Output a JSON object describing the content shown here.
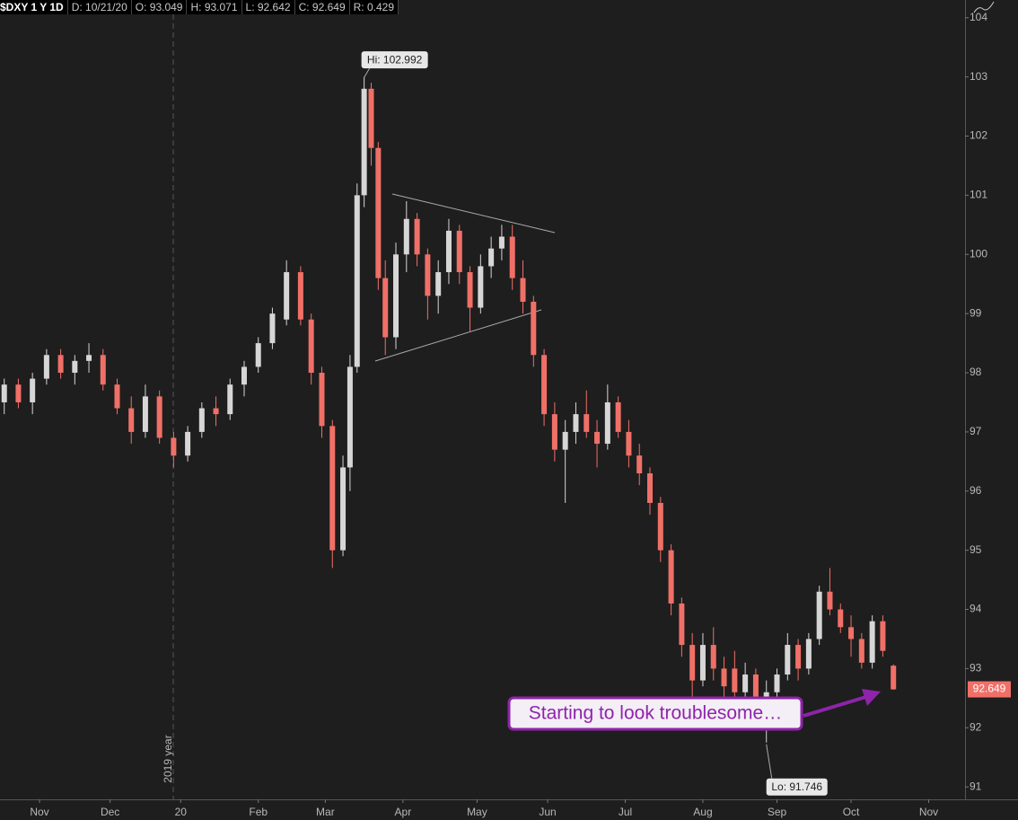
{
  "header": [
    "$DXY 1 Y 1D",
    "D: 10/21/20",
    "O: 93.049",
    "H: 93.071",
    "L: 92.642",
    "C: 92.649",
    "R: 0.429"
  ],
  "chart_data": {
    "type": "candlestick",
    "x": [
      -10,
      -6,
      -2,
      2,
      6,
      10,
      14,
      18,
      22,
      26,
      30,
      34,
      38,
      42,
      46,
      50,
      54,
      58,
      62,
      66,
      70,
      74,
      77,
      80,
      83,
      86,
      88,
      90,
      92,
      94,
      96,
      98,
      101,
      104,
      107,
      110,
      113,
      116,
      119,
      122,
      125,
      128,
      131,
      134,
      137,
      140,
      143,
      146,
      149,
      152,
      155,
      158,
      161,
      164,
      167,
      170,
      173,
      176,
      179,
      182,
      185,
      188,
      191,
      194,
      197,
      200,
      203,
      206,
      209,
      212,
      215,
      218,
      221,
      224,
      227,
      230,
      233,
      236,
      239,
      242
    ],
    "open": [
      97.5,
      97.8,
      97.5,
      97.9,
      98.3,
      98.0,
      98.2,
      98.3,
      97.8,
      97.4,
      97.0,
      97.6,
      96.9,
      96.6,
      97.0,
      97.4,
      97.3,
      97.8,
      98.1,
      98.5,
      98.9,
      99.7,
      98.9,
      98.0,
      97.1,
      95.0,
      96.4,
      98.1,
      101.0,
      102.8,
      101.8,
      99.6,
      98.6,
      100.0,
      100.6,
      100.0,
      99.3,
      99.7,
      100.4,
      99.7,
      99.1,
      99.8,
      100.1,
      100.3,
      99.6,
      99.2,
      98.3,
      97.3,
      96.7,
      97.0,
      97.3,
      97.0,
      96.8,
      97.5,
      97.0,
      96.6,
      96.3,
      95.8,
      95.0,
      94.1,
      93.4,
      92.8,
      93.4,
      93.0,
      93.0,
      92.6,
      92.9,
      92.4,
      92.6,
      92.9,
      93.4,
      93.0,
      93.5,
      94.3,
      94.0,
      93.7,
      93.5,
      93.1,
      93.8,
      93.049
    ],
    "high": [
      97.9,
      97.9,
      98.0,
      98.4,
      98.4,
      98.3,
      98.5,
      98.4,
      97.9,
      97.6,
      97.8,
      97.7,
      97.0,
      97.1,
      97.5,
      97.6,
      97.9,
      98.2,
      98.6,
      99.1,
      99.9,
      99.8,
      99.0,
      98.1,
      97.2,
      96.6,
      98.3,
      101.2,
      103.0,
      102.9,
      101.9,
      99.9,
      100.2,
      100.9,
      100.7,
      100.1,
      99.9,
      100.6,
      100.5,
      99.8,
      100.0,
      100.3,
      100.5,
      100.5,
      99.9,
      99.3,
      98.4,
      97.5,
      97.2,
      97.5,
      97.7,
      97.2,
      97.8,
      97.6,
      97.2,
      96.8,
      96.4,
      95.9,
      95.1,
      94.2,
      93.6,
      93.6,
      93.7,
      93.2,
      93.3,
      93.1,
      93.0,
      92.8,
      93.0,
      93.6,
      93.5,
      93.6,
      94.4,
      94.7,
      94.1,
      93.9,
      93.6,
      93.9,
      93.9,
      93.071
    ],
    "low": [
      97.3,
      97.4,
      97.3,
      97.8,
      97.9,
      97.8,
      98.0,
      97.7,
      97.3,
      96.8,
      96.9,
      96.8,
      96.4,
      96.5,
      96.9,
      97.1,
      97.2,
      97.6,
      98.0,
      98.4,
      98.8,
      98.8,
      97.8,
      96.9,
      94.7,
      94.9,
      96.0,
      98.0,
      100.8,
      101.5,
      99.4,
      98.3,
      98.4,
      99.7,
      99.8,
      98.9,
      99.0,
      99.5,
      99.5,
      98.7,
      99.0,
      99.6,
      99.9,
      99.4,
      99.0,
      98.1,
      97.1,
      96.5,
      95.8,
      96.8,
      96.9,
      96.4,
      96.7,
      96.9,
      96.4,
      96.1,
      95.6,
      94.8,
      93.9,
      93.2,
      92.5,
      92.7,
      92.8,
      92.4,
      92.5,
      92.4,
      92.2,
      91.75,
      92.5,
      92.8,
      92.8,
      92.9,
      93.4,
      93.9,
      93.6,
      93.2,
      93.0,
      93.0,
      93.2,
      92.642
    ],
    "close": [
      97.8,
      97.5,
      97.9,
      98.3,
      98.0,
      98.2,
      98.3,
      97.8,
      97.4,
      97.0,
      97.6,
      96.9,
      96.6,
      97.0,
      97.4,
      97.3,
      97.8,
      98.1,
      98.5,
      99.0,
      99.7,
      98.9,
      98.0,
      97.1,
      95.0,
      96.4,
      98.1,
      101.0,
      102.8,
      101.8,
      99.6,
      98.6,
      100.0,
      100.6,
      100.0,
      99.3,
      99.7,
      100.4,
      99.7,
      99.1,
      99.8,
      100.1,
      100.3,
      99.6,
      99.2,
      98.3,
      97.3,
      96.7,
      97.0,
      97.3,
      97.0,
      96.8,
      97.5,
      97.0,
      96.6,
      96.3,
      95.8,
      95.0,
      94.1,
      93.4,
      92.8,
      93.4,
      93.0,
      92.7,
      92.6,
      92.9,
      92.4,
      92.6,
      92.9,
      93.4,
      93.0,
      93.5,
      94.3,
      94.0,
      93.7,
      93.5,
      93.1,
      93.8,
      93.3,
      92.649
    ],
    "up_color": "#d6d6d6",
    "down_color": "#f07068",
    "xlim": [
      -11.2,
      262.3
    ],
    "xticks": [
      {
        "value": 0,
        "label": "Nov"
      },
      {
        "value": 20,
        "label": "Dec"
      },
      {
        "value": 40,
        "label": "20"
      },
      {
        "value": 62,
        "label": "Feb"
      },
      {
        "value": 81,
        "label": "Mar"
      },
      {
        "value": 103,
        "label": "Apr"
      },
      {
        "value": 124,
        "label": "May"
      },
      {
        "value": 144,
        "label": "Jun"
      },
      {
        "value": 166,
        "label": "Jul"
      },
      {
        "value": 188,
        "label": "Aug"
      },
      {
        "value": 209,
        "label": "Sep"
      },
      {
        "value": 230,
        "label": "Oct"
      },
      {
        "value": 252,
        "label": "Nov"
      }
    ],
    "ylim": [
      90.79,
      104.3
    ],
    "yticks": [
      91,
      92,
      93,
      94,
      95,
      96,
      97,
      98,
      99,
      100,
      101,
      102,
      103,
      104
    ],
    "grid": false,
    "year_marker": "2019 year",
    "hi": {
      "value": 102.992,
      "label": "Hi: 102.992"
    },
    "lo": {
      "value": 91.746,
      "label": "Lo: 91.746"
    },
    "last_price": 92.649,
    "annotation": "Starting to look troublesome…"
  }
}
